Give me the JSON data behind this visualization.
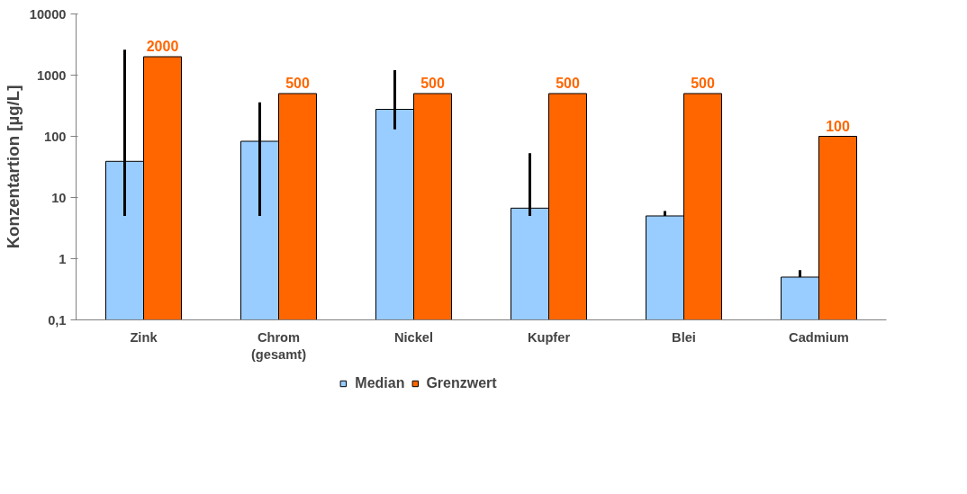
{
  "chart_data": {
    "type": "bar",
    "ylabel": "Konzentartion [µg/L]",
    "categories": [
      "Zink",
      "Chrom\n(gesamt)",
      "Nickel",
      "Kupfer",
      "Blei",
      "Cadmium"
    ],
    "log": true,
    "ylim": [
      0.1,
      10000
    ],
    "yticks": [
      {
        "value": 0.1,
        "label": "0,1"
      },
      1,
      10,
      100,
      1000,
      10000
    ],
    "grid": false,
    "legend": "bottom",
    "series": [
      {
        "name": "Median",
        "color": "#99ccff",
        "values": [
          39,
          83,
          276,
          6.7,
          5,
          0.5
        ],
        "errors": [
          [
            5,
            2600
          ],
          [
            5,
            360
          ],
          [
            130,
            1200
          ],
          [
            5,
            53
          ],
          [
            5,
            6
          ],
          [
            0.5,
            0.65
          ]
        ]
      },
      {
        "name": "Grenzwert",
        "color": "#ff6600",
        "values": [
          2000,
          500,
          500,
          500,
          500,
          100
        ],
        "value_labels": [
          "2000",
          "500",
          "500",
          "500",
          "500",
          "100"
        ]
      }
    ]
  }
}
